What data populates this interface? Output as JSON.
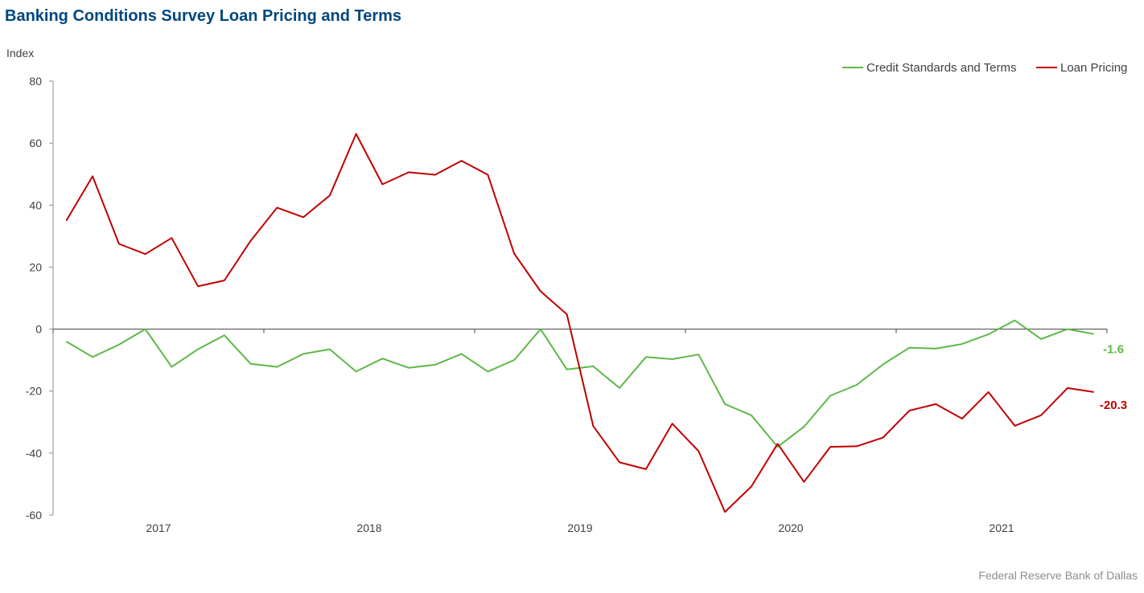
{
  "chart_data": {
    "type": "line",
    "title": "Banking Conditions Survey Loan Pricing and Terms",
    "ylabel": "Index",
    "xlabel": "",
    "ylim": [
      -60,
      80
    ],
    "yticks": [
      80,
      60,
      40,
      20,
      0,
      -20,
      -40,
      -60
    ],
    "xlim": [
      0,
      40
    ],
    "xticks": [
      {
        "label": "2017",
        "pos": 4
      },
      {
        "label": "2018",
        "pos": 12
      },
      {
        "label": "2019",
        "pos": 20
      },
      {
        "label": "2020",
        "pos": 28
      },
      {
        "label": "2021",
        "pos": 36
      }
    ],
    "legend_position": "top-right",
    "series": [
      {
        "name": "Credit Standards and Terms",
        "color": "#5db848",
        "end_label": "-1.6",
        "x": [
          0.5,
          1.5,
          2.5,
          3.5,
          4.5,
          5.5,
          6.5,
          7.5,
          8.5,
          9.5,
          10.5,
          11.5,
          12.5,
          13.5,
          14.5,
          15.5,
          16.5,
          17.5,
          18.5,
          19.5,
          20.5,
          21.5,
          22.5,
          23.5,
          24.5,
          25.5,
          26.5,
          27.5,
          28.5,
          29.5,
          30.5,
          31.5,
          32.5,
          33.5,
          34.5,
          35.5,
          36.5,
          37.5,
          38.5,
          39.5
        ],
        "values": [
          -4,
          -9,
          -5,
          0,
          -12.2,
          -6.5,
          -2,
          -11.2,
          -12.2,
          -8,
          -6.5,
          -13.7,
          -9.5,
          -12.5,
          -11.5,
          -8,
          -13.7,
          -10,
          0,
          -13,
          -12,
          -19,
          -9,
          -9.7,
          -8.2,
          -24.2,
          -27.8,
          -38,
          -31.5,
          -21.5,
          -18,
          -11.4,
          -6,
          -6.3,
          -4.8,
          -1.7,
          2.8,
          -3.2,
          0,
          -1.6
        ]
      },
      {
        "name": "Loan Pricing",
        "color": "#c00000",
        "end_label": "-20.3",
        "x": [
          0.5,
          1.5,
          2.5,
          3.5,
          4.5,
          5.5,
          6.5,
          7.5,
          8.5,
          9.5,
          10.5,
          11.5,
          12.5,
          13.5,
          14.5,
          15.5,
          16.5,
          17.5,
          18.5,
          19.5,
          20.5,
          21.5,
          22.5,
          23.5,
          24.5,
          25.5,
          26.5,
          27.5,
          28.5,
          29.5,
          30.5,
          31.5,
          32.5,
          33.5,
          34.5,
          35.5,
          36.5,
          37.5,
          38.5,
          39.5
        ],
        "values": [
          35,
          49.3,
          27.5,
          24.2,
          29.4,
          13.8,
          15.7,
          28.5,
          39.2,
          36.1,
          43.1,
          63,
          46.7,
          50.6,
          49.8,
          54.3,
          49.8,
          24.4,
          12.2,
          4.8,
          -31.3,
          -43,
          -45.2,
          -30.5,
          -39.4,
          -59,
          -50.8,
          -37,
          -49.3,
          -38,
          -37.8,
          -35,
          -26.3,
          -24.2,
          -28.9,
          -20.3,
          -31.2,
          -27.8,
          -19,
          -20.3
        ]
      }
    ]
  },
  "footer": {
    "source": "Federal Reserve Bank of Dallas"
  }
}
